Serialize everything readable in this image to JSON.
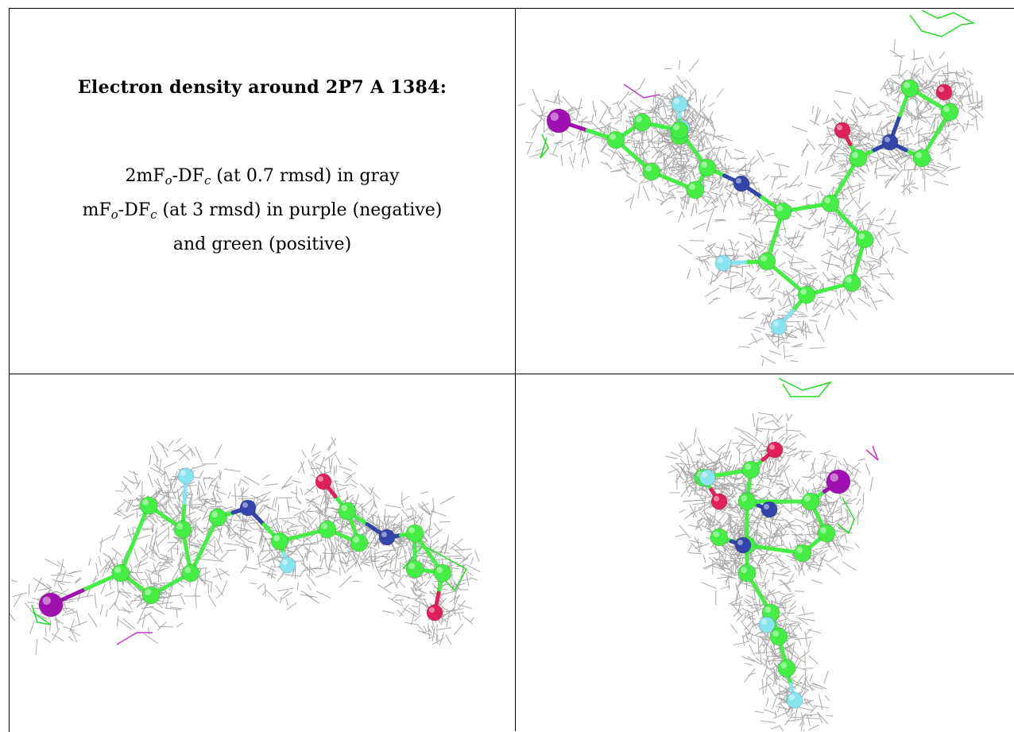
{
  "caption": {
    "title": "Electron density around 2P7 A 1384:",
    "line1_a": "2mF",
    "line1_sub1": "o",
    "line1_b": "-DF",
    "line1_sub2": "c",
    "line1_c": " (at 0.7 rmsd) in gray",
    "line2_a": "mF",
    "line2_sub1": "o",
    "line2_b": "-DF",
    "line2_sub2": "c",
    "line2_c": " (at 3 rmsd) in purple (negative)",
    "line3": "and green (positive)"
  },
  "colors": {
    "mesh_2fofc": "#9a9a9a",
    "diff_positive": "#22dd22",
    "diff_negative": "#cc33cc",
    "carbon": "#44ee44",
    "nitrogen": "#3344aa",
    "oxygen": "#e0205a",
    "fluorine": "#88e4ee",
    "iodine": "#a010b0"
  },
  "panels": [
    {
      "name": "view-top-right"
    },
    {
      "name": "view-bottom-left"
    },
    {
      "name": "view-bottom-right"
    }
  ]
}
